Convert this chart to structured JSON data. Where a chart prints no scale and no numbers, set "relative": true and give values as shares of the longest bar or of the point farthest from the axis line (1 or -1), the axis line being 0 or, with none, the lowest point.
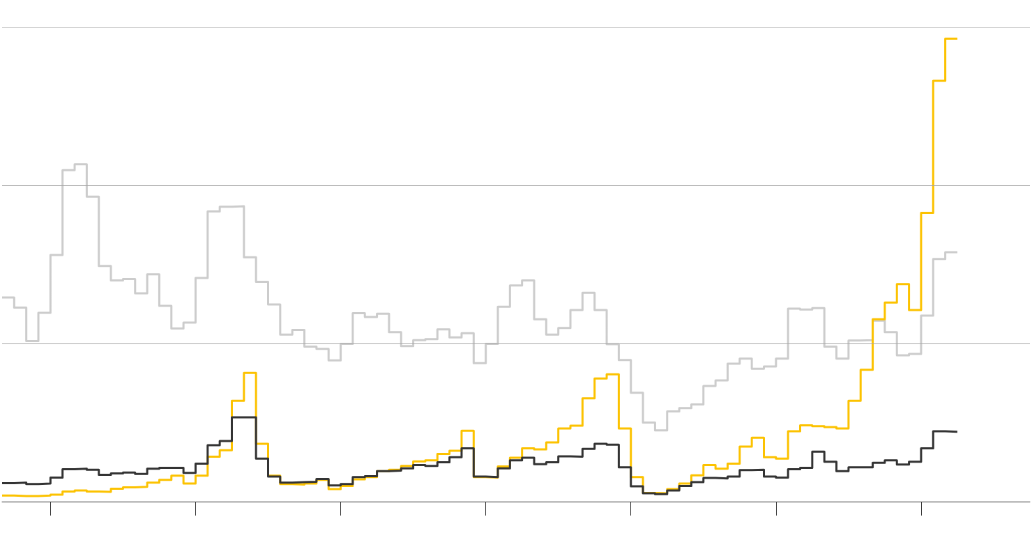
{
  "chart_data": {
    "type": "step",
    "relative": true,
    "marker": "none",
    "line_style": "solid",
    "categories": [
      null,
      null,
      null,
      null,
      null,
      null,
      null,
      null,
      null,
      null,
      null,
      null,
      null,
      null,
      null,
      null,
      null,
      null,
      null,
      null,
      null,
      null,
      null,
      null,
      null,
      null,
      null,
      null,
      null,
      null,
      null,
      null,
      null,
      null,
      null,
      null,
      null,
      null,
      null,
      null,
      null,
      null,
      null,
      null,
      null,
      null,
      null,
      null,
      null,
      null,
      null,
      null,
      null,
      null,
      null,
      null,
      null,
      null,
      null,
      null,
      null,
      null,
      null,
      null,
      null,
      null,
      null,
      null,
      null,
      null,
      null,
      null,
      null,
      null,
      null,
      null,
      null,
      null,
      null,
      null,
      null,
      null,
      null,
      null,
      null,
      null
    ],
    "ref_lines": [
      {
        "axis": "y",
        "value": 0.342,
        "color": "#a6a6a6"
      },
      {
        "axis": "y",
        "value": 0.683,
        "color": "#a6a6a6"
      },
      {
        "axis": "y",
        "value": 1.025,
        "color": "#d4d4d4"
      }
    ],
    "series": [
      {
        "color": "#cccccc",
        "values": [
          0.441,
          0.441,
          0.419,
          0.347,
          0.408,
          0.533,
          0.716,
          0.729,
          0.659,
          0.509,
          0.478,
          0.481,
          0.45,
          0.491,
          0.423,
          0.374,
          0.387,
          0.483,
          0.627,
          0.637,
          0.638,
          0.528,
          0.475,
          0.426,
          0.361,
          0.371,
          0.335,
          0.33,
          0.305,
          0.341,
          0.407,
          0.399,
          0.406,
          0.366,
          0.336,
          0.349,
          0.351,
          0.372,
          0.355,
          0.364,
          0.299,
          0.341,
          0.421,
          0.467,
          0.478,
          0.394,
          0.361,
          0.375,
          0.414,
          0.451,
          0.414,
          0.34,
          0.306,
          0.235,
          0.171,
          0.154,
          0.195,
          0.202,
          0.21,
          0.25,
          0.262,
          0.298,
          0.309,
          0.287,
          0.292,
          0.309,
          0.417,
          0.415,
          0.418,
          0.335,
          0.309,
          0.348,
          0.349,
          0.391,
          0.366,
          0.316,
          0.319,
          0.402,
          0.524,
          0.539,
          null,
          null,
          null,
          null,
          null,
          null
        ]
      },
      {
        "color": "#fcc200",
        "values": [
          0.013,
          0.013,
          0.012,
          0.012,
          0.013,
          0.015,
          0.022,
          0.024,
          0.022,
          0.021,
          0.028,
          0.031,
          0.032,
          0.041,
          0.047,
          0.056,
          0.039,
          0.056,
          0.097,
          0.111,
          0.218,
          0.278,
          0.125,
          0.056,
          0.038,
          0.037,
          0.039,
          0.047,
          0.027,
          0.034,
          0.048,
          0.053,
          0.066,
          0.069,
          0.077,
          0.087,
          0.089,
          0.103,
          0.11,
          0.153,
          0.053,
          0.052,
          0.076,
          0.095,
          0.115,
          0.113,
          0.128,
          0.158,
          0.164,
          0.223,
          0.266,
          0.275,
          0.158,
          0.053,
          0.019,
          0.018,
          0.027,
          0.039,
          0.057,
          0.079,
          0.071,
          0.082,
          0.119,
          0.138,
          0.096,
          0.093,
          0.152,
          0.165,
          0.163,
          0.161,
          0.158,
          0.218,
          0.285,
          0.394,
          0.43,
          0.47,
          0.414,
          0.624,
          0.909,
          1,
          null,
          null,
          null,
          null,
          null,
          null
        ]
      },
      {
        "color": "#333333",
        "values": [
          0.04,
          0.04,
          0.041,
          0.038,
          0.039,
          0.052,
          0.07,
          0.071,
          0.069,
          0.058,
          0.061,
          0.063,
          0.06,
          0.071,
          0.073,
          0.073,
          0.062,
          0.082,
          0.122,
          0.131,
          0.182,
          0.182,
          0.093,
          0.054,
          0.041,
          0.042,
          0.043,
          0.049,
          0.035,
          0.038,
          0.053,
          0.055,
          0.066,
          0.067,
          0.072,
          0.079,
          0.077,
          0.085,
          0.096,
          0.115,
          0.054,
          0.053,
          0.072,
          0.089,
          0.095,
          0.081,
          0.085,
          0.098,
          0.097,
          0.114,
          0.125,
          0.123,
          0.074,
          0.033,
          0.018,
          0.016,
          0.024,
          0.034,
          0.042,
          0.051,
          0.05,
          0.054,
          0.068,
          0.069,
          0.054,
          0.052,
          0.07,
          0.073,
          0.108,
          0.086,
          0.066,
          0.074,
          0.074,
          0.084,
          0.089,
          0.08,
          0.086,
          0.115,
          0.152,
          0.151,
          null,
          null,
          null,
          null,
          null,
          null
        ]
      }
    ]
  }
}
